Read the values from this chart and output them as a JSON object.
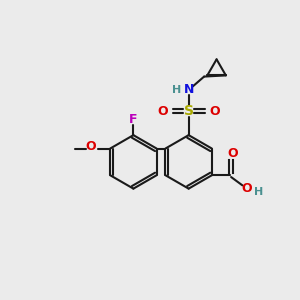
{
  "bg_color": "#ebebeb",
  "bond_color": "#1a1a1a",
  "bond_width": 1.5,
  "colors": {
    "H": "#4a9090",
    "N": "#1010dd",
    "O": "#dd0000",
    "F": "#bb00bb",
    "S": "#aaaa00"
  },
  "font_size": 9
}
